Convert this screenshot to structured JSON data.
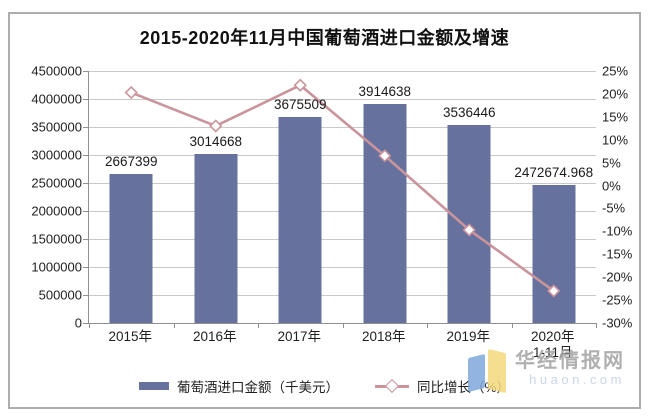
{
  "title": "2015-2020年11月中国葡萄酒进口金额及增速",
  "colors": {
    "bar": "#66719d",
    "line": "#c9949c",
    "marker_fill": "#ffffff",
    "grid": "#c9c9c9",
    "axis": "#8f8f8f",
    "watermark_text": "#a3a3a3",
    "watermark_url": "#c3cfe5",
    "logo_blue": "#7fa7db",
    "logo_yellow": "#f5d97e"
  },
  "chart_data": {
    "type": "bar+line",
    "title": "2015-2020年11月中国葡萄酒进口金额及增速",
    "categories": [
      "2015年",
      "2016年",
      "2017年",
      "2018年",
      "2019年",
      "2020年1-11月"
    ],
    "category_display": [
      [
        "2015年"
      ],
      [
        "2016年"
      ],
      [
        "2017年"
      ],
      [
        "2018年"
      ],
      [
        "2019年"
      ],
      [
        "2020年",
        "1-11月"
      ]
    ],
    "series": [
      {
        "name": "葡萄酒进口金额（千美元）",
        "type": "bar",
        "axis": "left",
        "values": [
          2667399,
          3014668,
          3675509,
          3914638,
          3536446,
          2472674.968
        ],
        "labels": [
          "2667399",
          "3014668",
          "3675509",
          "3914638",
          "3536446",
          "2472674.968"
        ]
      },
      {
        "name": "同比增长（%）",
        "type": "line",
        "axis": "right",
        "values": [
          20.3,
          13.0,
          21.9,
          6.5,
          -9.7,
          -23.0
        ]
      }
    ],
    "y_left": {
      "min": 0,
      "max": 4500000,
      "ticks": [
        "4500000",
        "4000000",
        "3500000",
        "3000000",
        "2500000",
        "2000000",
        "1500000",
        "1000000",
        "500000",
        "0"
      ]
    },
    "y_right": {
      "min": -30,
      "max": 25,
      "ticks": [
        "25%",
        "20%",
        "15%",
        "10%",
        "5%",
        "0%",
        "-5%",
        "-10%",
        "-15%",
        "-20%",
        "-25%",
        "-30%"
      ]
    },
    "grid": true,
    "legend_position": "bottom"
  },
  "legend": {
    "items": [
      {
        "label": "葡萄酒进口金额（千美元）",
        "swatch": "bar"
      },
      {
        "label": "同比增长（%）",
        "swatch": "line-diamond"
      }
    ]
  },
  "watermark": {
    "name": "华经情报网",
    "url": "huaon.com",
    "logo": "open-book-icon"
  }
}
